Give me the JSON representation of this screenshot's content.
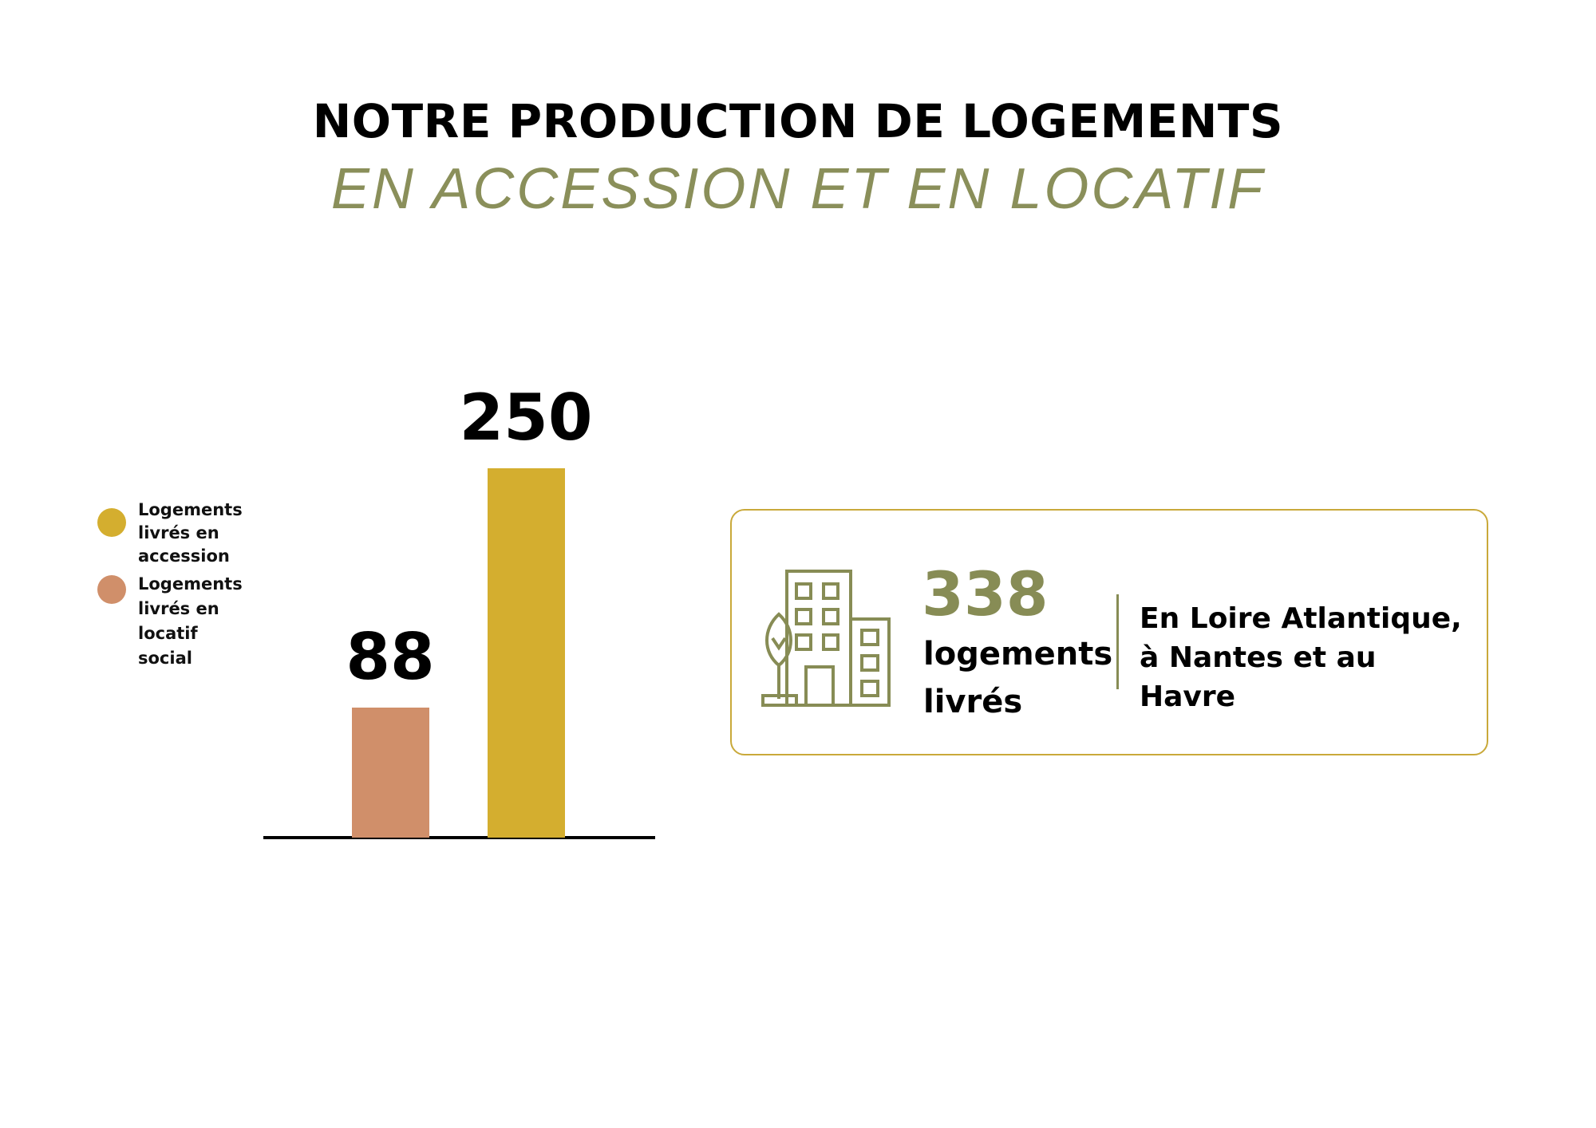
{
  "chart_data": {
    "type": "bar",
    "title": "NOTRE PRODUCTION DE LOGEMENTS",
    "subtitle": "EN ACCESSION ET EN LOCATIF",
    "series": [
      {
        "name": "Logements livrés en accession",
        "color": "#d4ae2f",
        "values": [
          250
        ]
      },
      {
        "name": "Logements livrés en locatif social",
        "color": "#d08f6a",
        "values": [
          88
        ]
      }
    ],
    "ylim": [
      0,
      250
    ]
  },
  "callout": {
    "value": 338,
    "label": "logements livrés",
    "location": "En Loire Atlantique, à Nantes et au Havre"
  }
}
